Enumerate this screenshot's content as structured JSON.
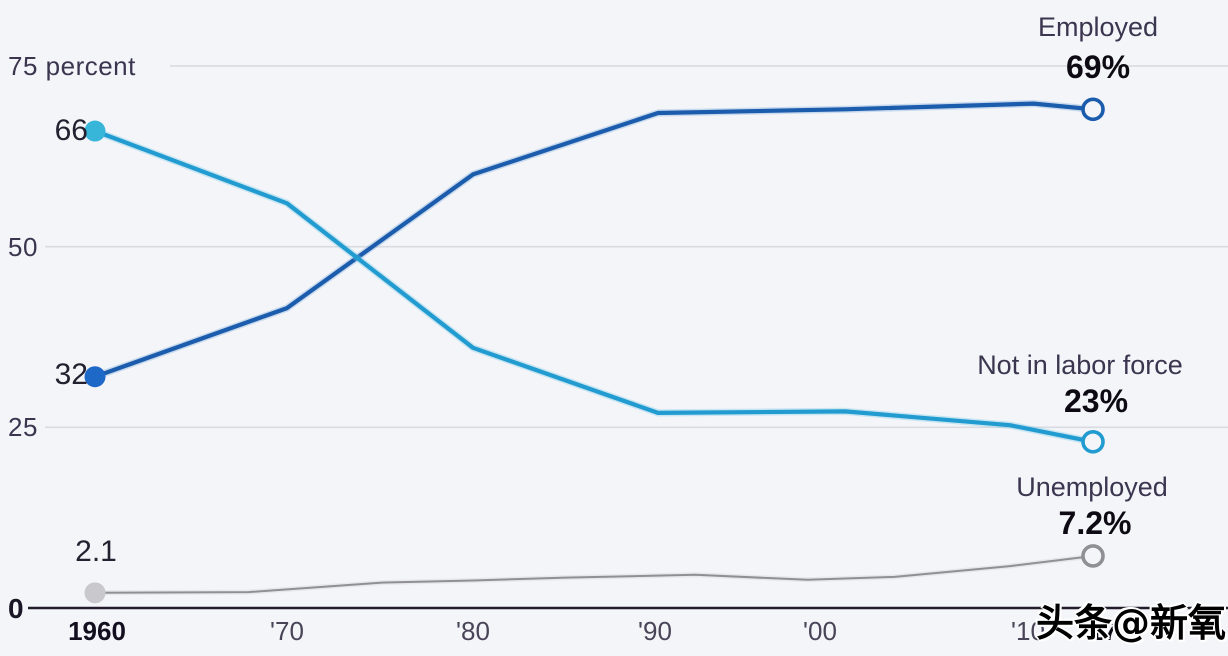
{
  "chart_data": {
    "type": "line",
    "unit": "percent",
    "grid": "horizontal",
    "ylim": [
      0,
      80
    ],
    "x_years": [
      1960,
      1970,
      1980,
      1990,
      2000,
      2010,
      2017
    ],
    "x_tick_labels": [
      "1960",
      "'70",
      "'80",
      "'90",
      "'00",
      "'10",
      "'17"
    ],
    "y_ticks": [
      {
        "value": 75,
        "label": "75 percent"
      },
      {
        "value": 50,
        "label": "50"
      },
      {
        "value": 25,
        "label": "25"
      },
      {
        "value": 0,
        "label": "0"
      }
    ],
    "colors": {
      "employed_line": "#1b5cad",
      "employed_dot": "#1e68c8",
      "not_in_labor_force_line": "#219bd0",
      "not_in_labor_force_dot": "#38b6da",
      "unemployed_line": "#8f8f95",
      "unemployed_dot": "#c9c9cd",
      "gridline": "#d8dbe1",
      "axis": "#231d2b",
      "background": "#f3f5f8"
    },
    "series": [
      {
        "name": "Unemployed",
        "key": "unemployed",
        "start_value_label": "2.1",
        "end_label": "Unemployed",
        "end_value_label": "7.2%",
        "points": [
          [
            1960,
            2.1
          ],
          [
            1968,
            2.2
          ],
          [
            1975,
            3.5
          ],
          [
            1980,
            3.8
          ],
          [
            1985,
            4.2
          ],
          [
            1992,
            4.6
          ],
          [
            1998,
            3.9
          ],
          [
            2003,
            4.3
          ],
          [
            2010,
            5.8
          ],
          [
            2017,
            7.2
          ]
        ]
      },
      {
        "name": "Employed",
        "key": "employed",
        "start_value_label": "32",
        "end_label": "Employed",
        "end_value_label": "69%",
        "points": [
          [
            1960,
            32
          ],
          [
            1970,
            41.5
          ],
          [
            1980,
            60
          ],
          [
            1990,
            68.5
          ],
          [
            2000,
            69
          ],
          [
            2012,
            69.8
          ],
          [
            2017,
            69
          ]
        ]
      },
      {
        "name": "Not in labor force",
        "key": "not_in_labor_force",
        "start_value_label": "66",
        "end_label": "Not in labor force",
        "end_value_label": "23%",
        "points": [
          [
            1960,
            66
          ],
          [
            1970,
            56
          ],
          [
            1980,
            36
          ],
          [
            1990,
            27
          ],
          [
            2000,
            27.2
          ],
          [
            2010,
            25.3
          ],
          [
            2017,
            23
          ]
        ]
      }
    ]
  },
  "watermark": {
    "text": "头条@新氧"
  }
}
